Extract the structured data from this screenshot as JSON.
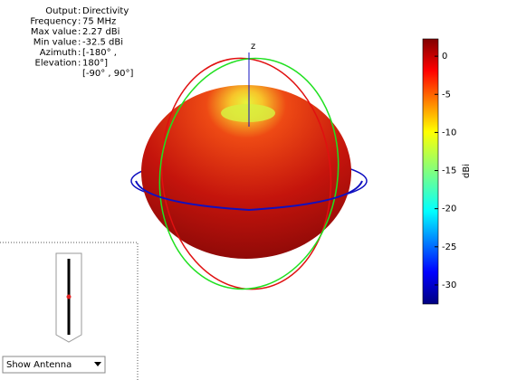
{
  "info": {
    "rows": [
      {
        "label": "Output",
        "value": "Directivity"
      },
      {
        "label": "Frequency",
        "value": "75 MHz"
      },
      {
        "label": "Max value",
        "value": "2.27 dBi"
      },
      {
        "label": "Min value",
        "value": "-32.5 dBi"
      },
      {
        "label": "Azimuth",
        "value": "[-180° ,"
      },
      {
        "label": "Elevation",
        "value": "180°]"
      }
    ],
    "extra": "[-90° , 90°]"
  },
  "plot": {
    "axis_label": "z"
  },
  "colorbar": {
    "label": "dBi",
    "lim": [
      -32.5,
      2.27
    ],
    "ticks": [
      0,
      -5,
      -10,
      -15,
      -20,
      -25,
      -30
    ]
  },
  "control": {
    "dropdown": "Show Antenna"
  }
}
